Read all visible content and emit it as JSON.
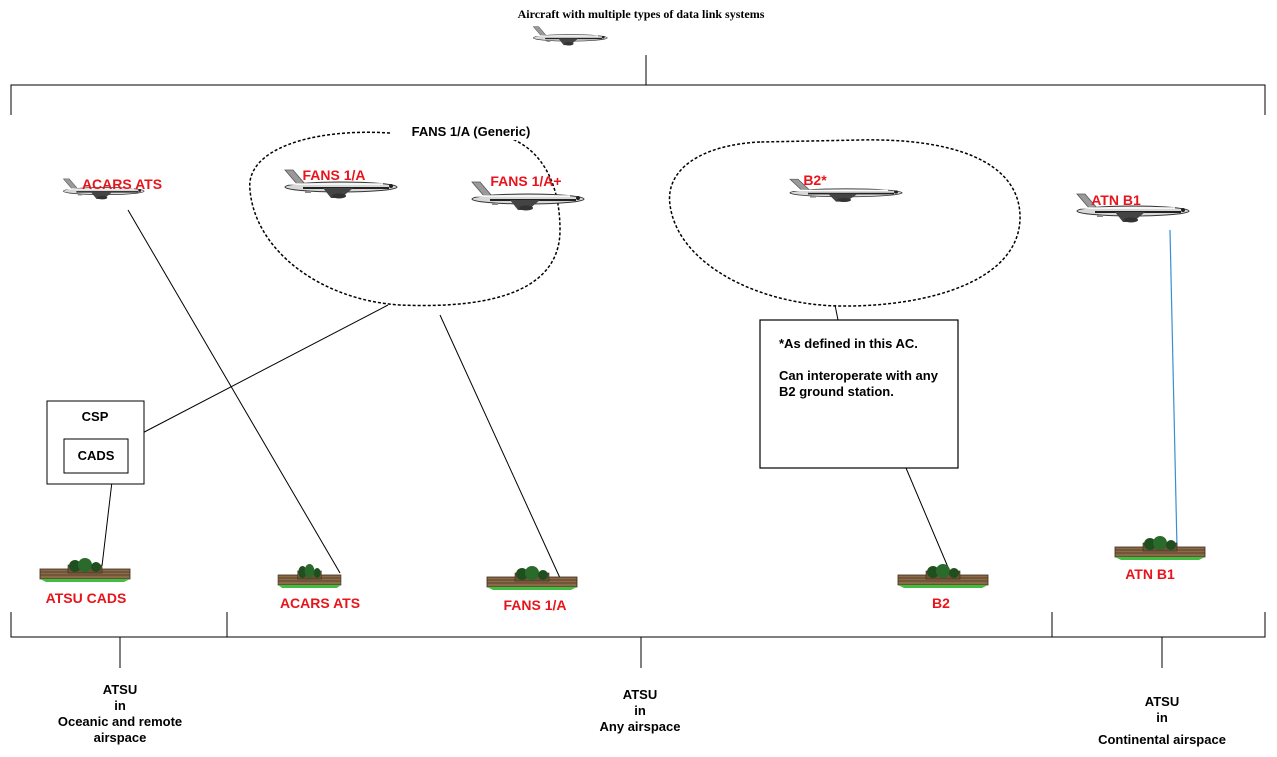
{
  "header": {
    "title": "Aircraft with multiple types of data link systems"
  },
  "group": {
    "label": "FANS 1/A (Generic)"
  },
  "aircraft": [
    {
      "label": "ACARS ATS"
    },
    {
      "label": "FANS 1/A"
    },
    {
      "label": "FANS 1/A+"
    },
    {
      "label": "B2*"
    },
    {
      "label": "ATN B1"
    }
  ],
  "note": {
    "lines": [
      "*As defined in this AC.",
      "Can interoperate with any B2 ground station."
    ]
  },
  "csp": {
    "label": "CSP",
    "inner": "CADS"
  },
  "ground_stations": [
    {
      "label": "ATSU CADS"
    },
    {
      "label": "ACARS ATS"
    },
    {
      "label": "FANS 1/A"
    },
    {
      "label": "B2"
    },
    {
      "label": "ATN B1"
    }
  ],
  "airspaces": [
    {
      "lines": [
        "ATSU",
        "in",
        "Oceanic and remote",
        "airspace"
      ]
    },
    {
      "lines": [
        "ATSU",
        "in",
        "Any airspace"
      ]
    },
    {
      "lines": [
        "ATSU",
        "in",
        "Continental airspace"
      ]
    }
  ]
}
